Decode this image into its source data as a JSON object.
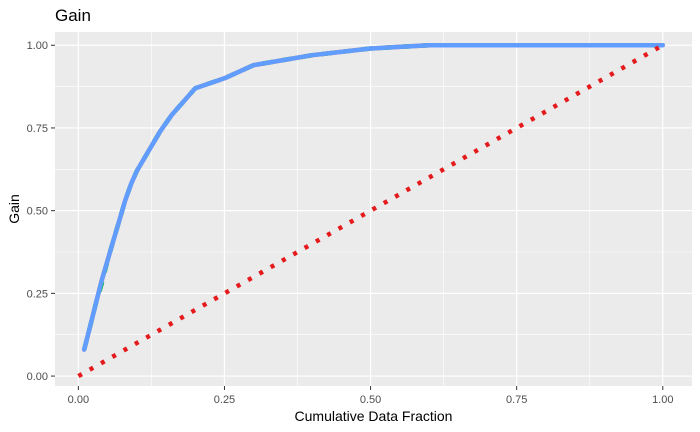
{
  "chart_data": {
    "type": "line",
    "title": "Gain",
    "xlabel": "Cumulative Data Fraction",
    "ylabel": "Gain",
    "xlim": [
      -0.04,
      1.05
    ],
    "ylim": [
      -0.03,
      1.04
    ],
    "x_ticks": [
      "0.00",
      "0.25",
      "0.50",
      "0.75",
      "1.00"
    ],
    "y_ticks": [
      "0.00",
      "0.25",
      "0.50",
      "0.75",
      "1.00"
    ],
    "grid": true,
    "legend": "none",
    "series": [
      {
        "color": "#F8766D",
        "dash": "solid",
        "x": [
          0.01,
          0.02,
          0.03,
          0.04,
          0.05,
          0.06,
          0.07,
          0.08,
          0.09,
          0.1,
          0.12,
          0.14,
          0.16,
          0.18,
          0.2,
          0.25,
          0.3,
          0.4,
          0.5,
          0.6,
          0.7,
          0.8,
          0.9,
          1.0
        ],
        "y": [
          0.08,
          0.15,
          0.22,
          0.29,
          0.35,
          0.41,
          0.47,
          0.53,
          0.58,
          0.62,
          0.68,
          0.74,
          0.79,
          0.83,
          0.87,
          0.9,
          0.94,
          0.97,
          0.99,
          1.0,
          1.0,
          1.0,
          1.0,
          1.0
        ]
      },
      {
        "color": "#00BA38",
        "dash": "dashed",
        "x": [
          0.01,
          0.02,
          0.03,
          0.04,
          0.05,
          0.06,
          0.07,
          0.08,
          0.09,
          0.1,
          0.12,
          0.14,
          0.16,
          0.18,
          0.2,
          0.25,
          0.3,
          0.4,
          0.5,
          0.6,
          0.7,
          0.8,
          0.9,
          1.0
        ],
        "y": [
          0.08,
          0.15,
          0.22,
          0.28,
          0.35,
          0.41,
          0.47,
          0.53,
          0.58,
          0.62,
          0.68,
          0.74,
          0.79,
          0.83,
          0.87,
          0.9,
          0.94,
          0.97,
          0.99,
          1.0,
          1.0,
          1.0,
          1.0,
          1.0
        ]
      },
      {
        "color": "#619CFF",
        "dash": "solid",
        "x": [
          0.01,
          0.02,
          0.03,
          0.04,
          0.05,
          0.06,
          0.07,
          0.08,
          0.09,
          0.1,
          0.12,
          0.14,
          0.16,
          0.18,
          0.2,
          0.25,
          0.3,
          0.4,
          0.5,
          0.6,
          0.7,
          0.8,
          0.9,
          1.0
        ],
        "y": [
          0.08,
          0.15,
          0.22,
          0.29,
          0.35,
          0.41,
          0.47,
          0.53,
          0.58,
          0.62,
          0.68,
          0.74,
          0.79,
          0.83,
          0.87,
          0.9,
          0.94,
          0.97,
          0.99,
          1.0,
          1.0,
          1.0,
          1.0,
          1.0
        ]
      },
      {
        "color": "#E41A1C",
        "dash": "dotted",
        "x": [
          0.0,
          1.0
        ],
        "y": [
          0.0,
          1.0
        ]
      }
    ]
  }
}
